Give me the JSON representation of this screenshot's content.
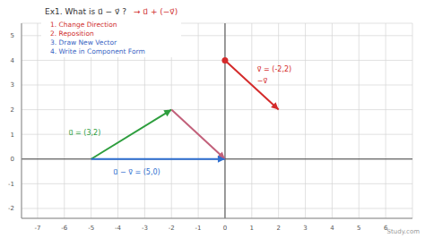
{
  "chart_data": {
    "type": "vector",
    "title": "Ex1. What is u⃗ − v⃗ ?",
    "subtitle": "→ u⃗ + (−v⃗)",
    "steps": [
      {
        "text": "1.  Change Direction",
        "color": "#d03030"
      },
      {
        "text": "2.  Reposition",
        "color": "#d03030"
      },
      {
        "text": "3.  Draw New Vector",
        "color": "#3a66c4"
      },
      {
        "text": "4.  Write in Component Form",
        "color": "#3a66c4"
      }
    ],
    "vectors": [
      {
        "labels": [
          "u⃗ = (3,2)"
        ],
        "color": "#2e9e3e",
        "x": [
          -5,
          -2
        ],
        "y": [
          0,
          2
        ]
      },
      {
        "color": "#c2607a",
        "x": [
          -2,
          0
        ],
        "y": [
          2,
          0
        ]
      },
      {
        "labels": [
          "u⃗ − v⃗ = (5,0)"
        ],
        "color": "#2f6fd0",
        "x": [
          -5,
          0
        ],
        "y": [
          0,
          0
        ]
      },
      {
        "labels": [
          "v⃗ = (-2,2)",
          "−v⃗"
        ],
        "color": "#d42a2a",
        "x": [
          0,
          2
        ],
        "y": [
          4,
          2
        ],
        "marker": "circle"
      }
    ],
    "watermark": "Study.com",
    "xlim": [
      -7.6,
      7
    ],
    "ylim": [
      -2.4,
      5.5
    ],
    "xticks": [
      -7,
      -6,
      -5,
      -4,
      -3,
      -2,
      -1,
      0,
      1,
      2,
      3,
      4,
      5,
      6
    ],
    "yticks": [
      -2,
      -1,
      0,
      1,
      2,
      3,
      4,
      5
    ],
    "grid": true,
    "tick_labels": true
  }
}
